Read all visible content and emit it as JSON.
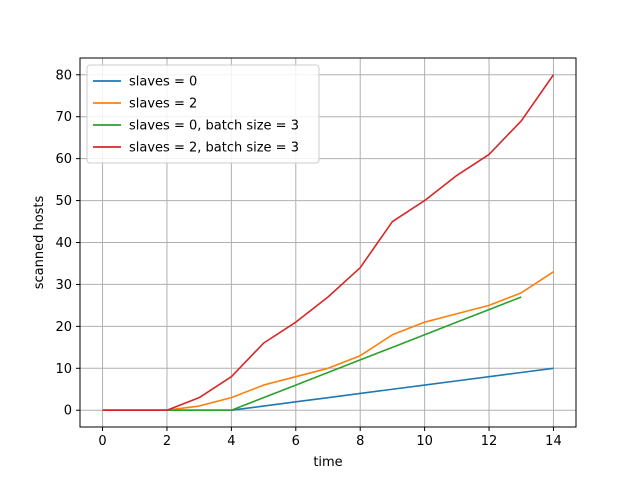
{
  "chart_data": {
    "type": "line",
    "xlabel": "time",
    "ylabel": "scanned hosts",
    "xlim": [
      -0.7,
      14.7
    ],
    "ylim": [
      -4,
      84
    ],
    "xticks": [
      0,
      2,
      4,
      6,
      8,
      10,
      12,
      14
    ],
    "yticks": [
      0,
      10,
      20,
      30,
      40,
      50,
      60,
      70,
      80
    ],
    "grid": true,
    "legend_position": "top-left",
    "series": [
      {
        "name": "slaves = 0",
        "color": "#1f77b4",
        "x": [
          0,
          1,
          2,
          3,
          4,
          5,
          6,
          7,
          8,
          9,
          10,
          11,
          12,
          13,
          14
        ],
        "y": [
          0,
          0,
          0,
          0,
          0,
          1,
          2,
          3,
          4,
          5,
          6,
          7,
          8,
          9,
          10
        ]
      },
      {
        "name": "slaves = 2",
        "color": "#ff7f0e",
        "x": [
          0,
          1,
          2,
          3,
          4,
          5,
          6,
          7,
          8,
          9,
          10,
          11,
          12,
          13,
          14
        ],
        "y": [
          0,
          0,
          0,
          1,
          3,
          6,
          8,
          10,
          13,
          18,
          21,
          23,
          25,
          28,
          33
        ]
      },
      {
        "name": "slaves = 0, batch size = 3",
        "color": "#2ca02c",
        "x": [
          0,
          1,
          2,
          3,
          4,
          5,
          6,
          7,
          8,
          9,
          10,
          11,
          12,
          13
        ],
        "y": [
          0,
          0,
          0,
          0,
          0,
          3,
          6,
          9,
          12,
          15,
          18,
          21,
          24,
          27
        ]
      },
      {
        "name": "slaves = 2, batch size = 3",
        "color": "#d62728",
        "x": [
          0,
          1,
          2,
          3,
          4,
          5,
          6,
          7,
          8,
          9,
          10,
          11,
          12,
          13,
          14
        ],
        "y": [
          0,
          0,
          0,
          3,
          8,
          16,
          21,
          27,
          34,
          45,
          50,
          56,
          61,
          69,
          80
        ]
      }
    ]
  }
}
